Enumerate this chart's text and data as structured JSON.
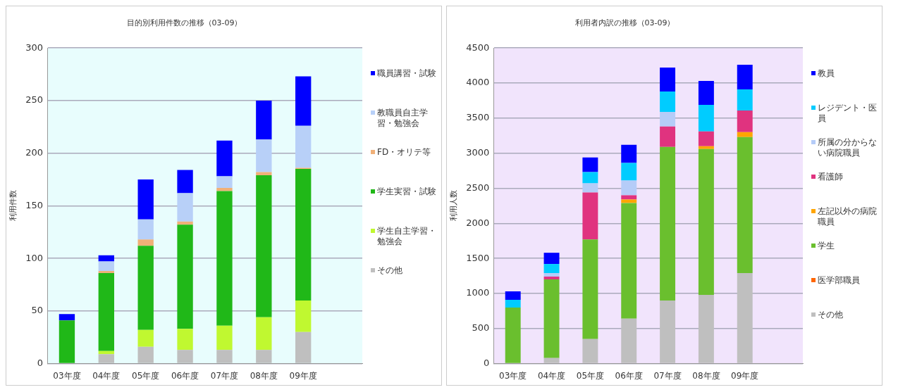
{
  "chart_data": [
    {
      "type": "bar",
      "title": "目的別利用件数の推移（03-09）",
      "ylabel": "利用件数",
      "stacked": true,
      "grid": "y",
      "legend": "right",
      "categories": [
        "03年度",
        "04年度",
        "05年度",
        "06年度",
        "07年度",
        "08年度",
        "09年度",
        null
      ],
      "ylim": [
        0,
        300
      ],
      "yticks": [
        0,
        50,
        100,
        150,
        200,
        250,
        300
      ],
      "series": [
        {
          "name": "その他",
          "color": "#bfbfbf",
          "values": [
            0,
            9,
            16,
            13,
            13,
            13,
            30,
            null
          ]
        },
        {
          "name": "学生自主学習・勉強会",
          "color": "#c0f830",
          "values": [
            0,
            3,
            16,
            20,
            23,
            31,
            30,
            null
          ]
        },
        {
          "name": "学生実習・試験",
          "color": "#20b818",
          "values": [
            41,
            74,
            80,
            99,
            128,
            135,
            125,
            null
          ]
        },
        {
          "name": "FD・オリテ等",
          "color": "#f0b078",
          "values": [
            0,
            2,
            6,
            3,
            3,
            3,
            1,
            null
          ]
        },
        {
          "name": "教職員自主学習・勉強会",
          "color": "#b8d0f8",
          "values": [
            0,
            9,
            19,
            27,
            11,
            31,
            40,
            null
          ]
        },
        {
          "name": "職員講習・試験",
          "color": "#0000ff",
          "values": [
            6,
            6,
            38,
            22,
            34,
            37,
            47,
            null
          ]
        }
      ]
    },
    {
      "type": "bar",
      "title": "利用者内訳の推移（03-09）",
      "ylabel": "利用人数",
      "stacked": true,
      "grid": "y",
      "legend": "right",
      "categories": [
        "03年度",
        "04年度",
        "05年度",
        "06年度",
        "07年度",
        "08年度",
        "09年度",
        null
      ],
      "ylim": [
        0,
        4500
      ],
      "yticks": [
        0,
        500,
        1000,
        1500,
        2000,
        2500,
        3000,
        3500,
        4000,
        4500
      ],
      "series": [
        {
          "name": "その他",
          "color": "#bfbfbf",
          "values": [
            0,
            80,
            350,
            640,
            900,
            980,
            1290,
            null
          ]
        },
        {
          "name": "医学部職員",
          "color": "#ff6600",
          "values": [
            0,
            0,
            0,
            0,
            0,
            0,
            0,
            null
          ]
        },
        {
          "name": "学生",
          "color": "#6abf2e",
          "values": [
            800,
            1120,
            1420,
            1650,
            2190,
            2080,
            1940,
            null
          ]
        },
        {
          "name": "左記以外の病院職員",
          "color": "#ffa500",
          "values": [
            0,
            0,
            0,
            50,
            0,
            40,
            70,
            null
          ]
        },
        {
          "name": "看護師",
          "color": "#e0337f",
          "values": [
            0,
            40,
            670,
            60,
            290,
            210,
            310,
            null
          ]
        },
        {
          "name": "所属の分からない病院職員",
          "color": "#b5ccf8",
          "values": [
            0,
            50,
            130,
            210,
            210,
            0,
            0,
            null
          ]
        },
        {
          "name": "レジデント・医員",
          "color": "#00ccff",
          "values": [
            110,
            130,
            160,
            250,
            290,
            380,
            300,
            null
          ]
        },
        {
          "name": "教員",
          "color": "#0000ff",
          "values": [
            120,
            160,
            210,
            260,
            340,
            340,
            350,
            null
          ]
        }
      ]
    }
  ]
}
